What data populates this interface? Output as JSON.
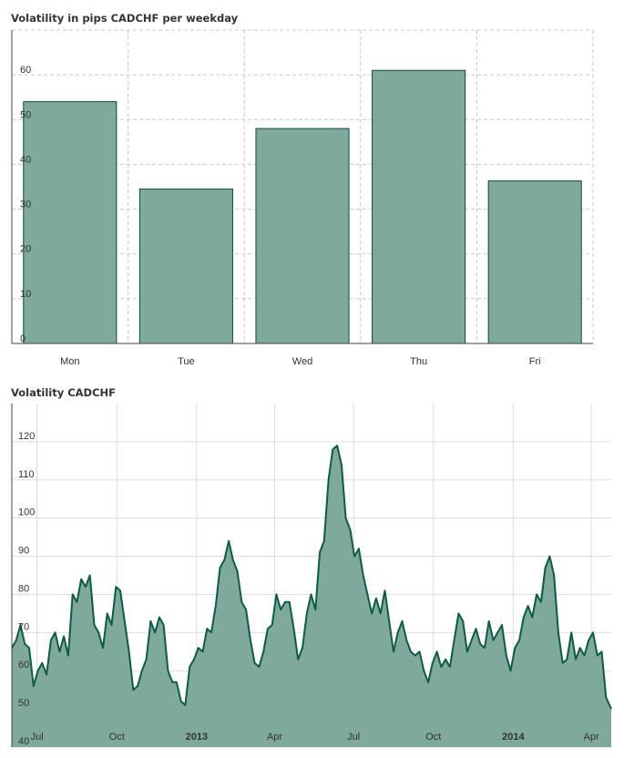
{
  "chart_data": [
    {
      "type": "bar",
      "title": "Volatility in pips CADCHF per weekday",
      "categories": [
        "Mon",
        "Tue",
        "Wed",
        "Thu",
        "Fri"
      ],
      "values": [
        54,
        34.5,
        48,
        61,
        36.3
      ],
      "ylim": [
        0,
        70
      ],
      "yticks": [
        0,
        10,
        20,
        30,
        40,
        50,
        60
      ],
      "grid": true,
      "colors": {
        "fill": "#7fa99d",
        "stroke": "#0d4a3a",
        "grid": "#c8c8c8"
      }
    },
    {
      "type": "area",
      "title": "Volatility CADCHF",
      "ylim": [
        40,
        130
      ],
      "yticks": [
        40,
        50,
        60,
        70,
        80,
        90,
        100,
        110,
        120
      ],
      "xlim": [
        "2012-06-02",
        "2014-04-24"
      ],
      "xticks": [
        {
          "date": "2012-07-01",
          "label": "Jul",
          "bold": false
        },
        {
          "date": "2012-10-01",
          "label": "Oct",
          "bold": false
        },
        {
          "date": "2013-01-01",
          "label": "2013",
          "bold": true
        },
        {
          "date": "2013-04-01",
          "label": "Apr",
          "bold": false
        },
        {
          "date": "2013-07-01",
          "label": "Jul",
          "bold": false
        },
        {
          "date": "2013-10-01",
          "label": "Oct",
          "bold": false
        },
        {
          "date": "2014-01-01",
          "label": "2014",
          "bold": true
        },
        {
          "date": "2014-04-01",
          "label": "Apr",
          "bold": false
        }
      ],
      "grid": true,
      "colors": {
        "fill": "#7fa99d",
        "stroke": "#0d5a45",
        "grid": "#dddddd"
      },
      "series": [
        {
          "x": [
            "2012-06-02",
            "2012-06-07",
            "2012-06-12",
            "2012-06-17",
            "2012-06-22",
            "2012-06-27",
            "2012-07-02",
            "2012-07-07",
            "2012-07-12",
            "2012-07-17",
            "2012-07-22",
            "2012-07-27",
            "2012-08-01",
            "2012-08-06",
            "2012-08-11",
            "2012-08-16",
            "2012-08-21",
            "2012-08-26",
            "2012-08-31",
            "2012-09-05",
            "2012-09-10",
            "2012-09-15",
            "2012-09-20",
            "2012-09-25",
            "2012-09-30",
            "2012-10-05",
            "2012-10-10",
            "2012-10-15",
            "2012-10-20",
            "2012-10-25",
            "2012-10-30",
            "2012-11-04",
            "2012-11-09",
            "2012-11-14",
            "2012-11-19",
            "2012-11-24",
            "2012-11-29",
            "2012-12-04",
            "2012-12-09",
            "2012-12-14",
            "2012-12-19",
            "2012-12-24",
            "2012-12-29",
            "2013-01-03",
            "2013-01-08",
            "2013-01-13",
            "2013-01-18",
            "2013-01-23",
            "2013-01-28",
            "2013-02-02",
            "2013-02-07",
            "2013-02-12",
            "2013-02-17",
            "2013-02-22",
            "2013-02-27",
            "2013-03-04",
            "2013-03-09",
            "2013-03-14",
            "2013-03-19",
            "2013-03-24",
            "2013-03-29",
            "2013-04-03",
            "2013-04-08",
            "2013-04-13",
            "2013-04-18",
            "2013-04-23",
            "2013-04-28",
            "2013-05-03",
            "2013-05-08",
            "2013-05-13",
            "2013-05-18",
            "2013-05-23",
            "2013-05-28",
            "2013-06-02",
            "2013-06-07",
            "2013-06-12",
            "2013-06-17",
            "2013-06-22",
            "2013-06-27",
            "2013-07-02",
            "2013-07-07",
            "2013-07-12",
            "2013-07-17",
            "2013-07-22",
            "2013-07-27",
            "2013-08-01",
            "2013-08-06",
            "2013-08-11",
            "2013-08-16",
            "2013-08-21",
            "2013-08-26",
            "2013-08-31",
            "2013-09-05",
            "2013-09-10",
            "2013-09-15",
            "2013-09-20",
            "2013-09-25",
            "2013-09-30",
            "2013-10-05",
            "2013-10-10",
            "2013-10-15",
            "2013-10-20",
            "2013-10-25",
            "2013-10-30",
            "2013-11-04",
            "2013-11-09",
            "2013-11-14",
            "2013-11-19",
            "2013-11-24",
            "2013-11-29",
            "2013-12-04",
            "2013-12-09",
            "2013-12-14",
            "2013-12-19",
            "2013-12-24",
            "2013-12-29",
            "2014-01-03",
            "2014-01-08",
            "2014-01-13",
            "2014-01-18",
            "2014-01-23",
            "2014-01-28",
            "2014-02-02",
            "2014-02-07",
            "2014-02-12",
            "2014-02-17",
            "2014-02-22",
            "2014-02-27",
            "2014-03-04",
            "2014-03-09",
            "2014-03-14",
            "2014-03-19",
            "2014-03-24",
            "2014-03-29",
            "2014-04-03",
            "2014-04-08",
            "2014-04-13",
            "2014-04-18",
            "2014-04-24"
          ],
          "y": [
            66,
            68,
            72,
            67,
            66,
            56,
            60,
            62,
            59,
            68,
            70,
            65,
            69,
            64,
            80,
            78,
            84,
            82,
            85,
            72,
            70,
            66,
            75,
            72,
            82,
            81,
            73,
            65,
            55,
            56,
            60,
            63,
            73,
            70,
            74,
            72,
            60,
            57,
            57,
            52,
            51,
            61,
            63,
            66,
            65,
            71,
            70,
            77,
            87,
            89,
            94,
            89,
            86,
            78,
            76,
            68,
            62,
            61,
            65,
            71,
            72,
            80,
            76,
            78,
            78,
            71,
            63,
            66,
            75,
            80,
            76,
            91,
            94,
            110,
            118,
            119,
            114,
            100,
            97,
            90,
            92,
            85,
            80,
            75,
            79,
            75,
            81,
            73,
            65,
            70,
            73,
            68,
            65,
            64,
            65,
            60,
            57,
            62,
            65,
            61,
            63,
            61,
            68,
            75,
            73,
            65,
            68,
            71,
            67,
            66,
            73,
            68,
            70,
            72,
            64,
            60,
            66,
            68,
            74,
            77,
            74,
            80,
            78,
            87,
            90,
            85,
            70,
            62,
            63,
            70,
            63,
            66,
            64,
            68,
            70,
            64,
            65,
            53,
            50
          ]
        }
      ]
    }
  ]
}
